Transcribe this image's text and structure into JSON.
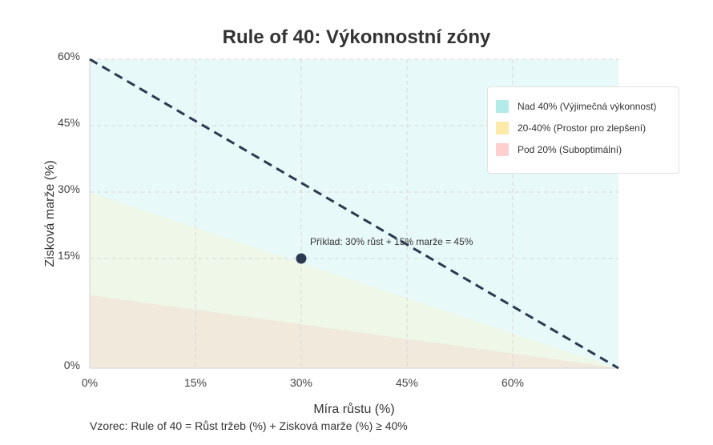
{
  "chart_data": {
    "type": "area",
    "title": "Rule of 40: Výkonnostní zóny",
    "xlabel": "Míra růstu (%)",
    "ylabel": "Zisková marže (%)",
    "xlim": [
      0,
      75
    ],
    "ylim": [
      0,
      60
    ],
    "x_ticks": [
      {
        "value": 0,
        "label": "0%"
      },
      {
        "value": 15,
        "label": "15%"
      },
      {
        "value": 30,
        "label": "30%"
      },
      {
        "value": 45,
        "label": "45%"
      },
      {
        "value": 60,
        "label": "60%"
      }
    ],
    "y_ticks": [
      {
        "value": 0,
        "label": "0%"
      },
      {
        "value": 15,
        "label": "15%"
      },
      {
        "value": 30,
        "label": "30%"
      },
      {
        "value": 45,
        "label": "45%"
      },
      {
        "value": 60,
        "label": "60%"
      }
    ],
    "grid": true,
    "zones": [
      {
        "name": "Nad 40% (Výjimečná výkonnost)",
        "color": "#b2ebe7",
        "fill": "#e8f9f9",
        "top_at_x0": 60,
        "top_at_xmax": 60
      },
      {
        "name": "20-40% (Prostor pro zlepšení)",
        "color": "#fde9a8",
        "fill": "#eef7e8",
        "top_at_x0": 30,
        "top_at_xmax": 0
      },
      {
        "name": "Pod 20% (Suboptimální)",
        "color": "#fdcfcf",
        "fill": "#f0e9dc",
        "top_at_x0": 10,
        "top_at_xmax": 0
      }
    ],
    "threshold_line": {
      "points": [
        [
          0,
          60
        ],
        [
          75,
          0
        ]
      ],
      "color": "#2b3a4e",
      "style": "dashed"
    },
    "example_point": {
      "x": 30,
      "y": 15,
      "label": "Příklad: 30% růst + 15% marže = 45%",
      "color": "#2b3a4e"
    },
    "legend_position": "top-right"
  },
  "footer": {
    "formula": "Vzorec: Rule of 40 = Růst tržeb (%) + Zisková marže (%) ≥ 40%"
  }
}
